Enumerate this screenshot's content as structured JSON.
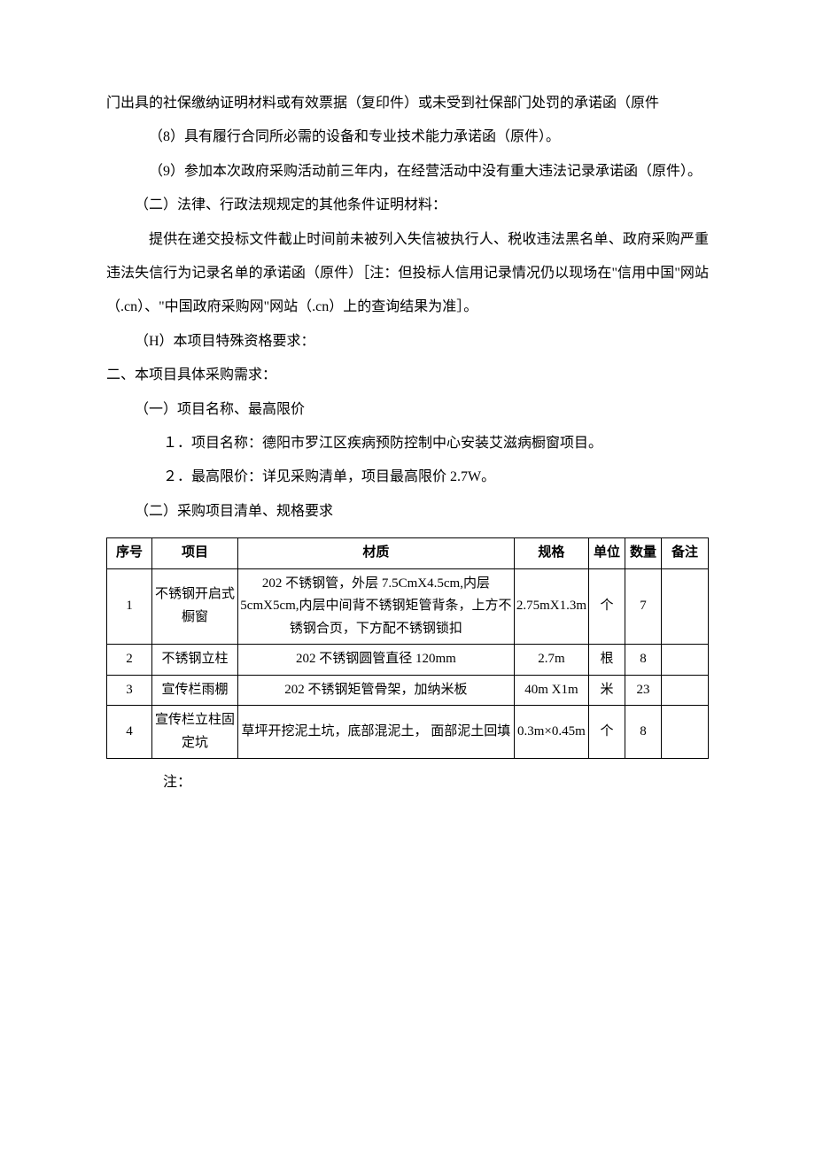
{
  "paragraphs": {
    "p1": "门出具的社保缴纳证明材料或有效票据（复印件）或未受到社保部门处罚的承诺函（原件",
    "p2": "（8）具有履行合同所必需的设备和专业技术能力承诺函（原件）。",
    "p3": "（9）参加本次政府采购活动前三年内，在经营活动中没有重大违法记录承诺函（原件）。",
    "p4": "（二）法律、行政法规规定的其他条件证明材料：",
    "p5": "提供在递交投标文件截止时间前未被列入失信被执行人、税收违法黑名单、政府采购严重违法失信行为记录名单的承诺函（原件）［注：但投标人信用记录情况仍以现场在\"信用中国\"网站（.cn）、\"中国政府采购网\"网站（.cn）上的查询结果为准］。",
    "p6": "（H）本项目特殊资格要求：",
    "h1": "二、本项目具体采购需求：",
    "p7": "（一）项目名称、最高限价",
    "p8": "１．项目名称：德阳市罗江区疾病预防控制中心安装艾滋病橱窗项目。",
    "p9": "２．最高限价：详见采购清单，项目最高限价 2.7W。",
    "p10": "（二）采购项目清单、规格要求",
    "p11": "注："
  },
  "table": {
    "headers": {
      "seq": "序号",
      "item": "项目",
      "material": "材质",
      "spec": "规格",
      "unit": "单位",
      "qty": "数量",
      "note": "备注"
    },
    "rows": [
      {
        "seq": "1",
        "item": "不锈钢开启式橱窗",
        "material": "202 不锈钢管，外层 7.5CmX4.5cm,内层 5cmX5cm,内层中间背不锈钢矩管背条，上方不锈钢合页，下方配不锈钢锁扣",
        "spec": "2.75mX1.3m",
        "unit": "个",
        "qty": "7",
        "note": ""
      },
      {
        "seq": "2",
        "item": "不锈钢立柱",
        "material": "202 不锈钢圆管直径 120mm",
        "spec": "2.7m",
        "unit": "根",
        "qty": "8",
        "note": ""
      },
      {
        "seq": "3",
        "item": "宣传栏雨棚",
        "material": "202 不锈钢矩管骨架，加纳米板",
        "spec": "40m X1m",
        "unit": "米",
        "qty": "23",
        "note": ""
      },
      {
        "seq": "4",
        "item": "宣传栏立柱固定坑",
        "material": "草坪开挖泥土坑，底部混泥土， 面部泥土回填",
        "spec": "0.3m×0.45m",
        "unit": "个",
        "qty": "8",
        "note": ""
      }
    ]
  }
}
